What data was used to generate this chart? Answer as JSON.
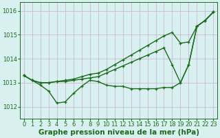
{
  "x": [
    0,
    1,
    2,
    3,
    4,
    5,
    6,
    7,
    8,
    9,
    10,
    11,
    12,
    13,
    14,
    15,
    16,
    17,
    18,
    19,
    20,
    21,
    22,
    23
  ],
  "line1": [
    1013.3,
    1013.1,
    1012.9,
    1012.65,
    1012.15,
    1012.2,
    1012.55,
    1012.85,
    1013.1,
    1013.05,
    1012.9,
    1012.85,
    1012.85,
    1012.75,
    1012.75,
    1012.75,
    1012.75,
    1012.8,
    1012.8,
    1013.0,
    1013.75,
    1015.35,
    1015.6,
    1015.95
  ],
  "line2": [
    1013.3,
    1013.1,
    1013.0,
    1013.0,
    1013.05,
    1013.05,
    1013.1,
    1013.15,
    1013.2,
    1013.25,
    1013.4,
    1013.55,
    1013.7,
    1013.85,
    1014.0,
    1014.15,
    1014.3,
    1014.45,
    1013.75,
    1013.0,
    1013.75,
    1015.35,
    1015.6,
    1015.95
  ],
  "line3": [
    1013.3,
    1013.1,
    1013.0,
    1013.0,
    1013.05,
    1013.1,
    1013.15,
    1013.25,
    1013.35,
    1013.4,
    1013.55,
    1013.75,
    1013.95,
    1014.15,
    1014.35,
    1014.55,
    1014.75,
    1014.95,
    1015.1,
    1014.65,
    1014.7,
    1015.35,
    1015.6,
    1015.95
  ],
  "ylim": [
    1011.5,
    1016.35
  ],
  "yticks": [
    1012,
    1013,
    1014,
    1015,
    1016
  ],
  "xticks": [
    0,
    1,
    2,
    3,
    4,
    5,
    6,
    7,
    8,
    9,
    10,
    11,
    12,
    13,
    14,
    15,
    16,
    17,
    18,
    19,
    20,
    21,
    22,
    23
  ],
  "line_color": "#1a6b1a",
  "marker": "+",
  "markersize": 3.5,
  "linewidth": 1.0,
  "bg_color": "#d8f0f0",
  "grid_color": "#c8aec8",
  "xlabel": "Graphe pression niveau de la mer (hPa)",
  "xlabel_color": "#1a6b1a",
  "xlabel_fontsize": 7.5,
  "tick_fontsize": 6.0,
  "tick_color": "#1a6b1a"
}
